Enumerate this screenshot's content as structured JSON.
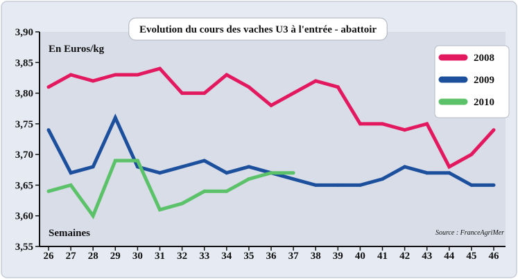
{
  "chart_data": {
    "type": "line",
    "title": "Evolution du cours des vaches U3 à l'entrée - abattoir",
    "unit_label": "En Euros/kg",
    "x_axis_label": "Semaines",
    "source": "Source : FranceAgriMer",
    "x": [
      26,
      27,
      28,
      29,
      30,
      31,
      32,
      33,
      34,
      35,
      36,
      37,
      38,
      39,
      40,
      41,
      42,
      43,
      44,
      45,
      46
    ],
    "ylim": [
      3.55,
      3.9
    ],
    "y_ticks": [
      "3,55",
      "3,60",
      "3,65",
      "3,70",
      "3,75",
      "3,80",
      "3,85",
      "3,90"
    ],
    "grid": false,
    "legend_position": "top-right",
    "series": [
      {
        "name": "2008",
        "color": "#e3195f",
        "values": [
          3.81,
          3.83,
          3.82,
          3.83,
          3.83,
          3.84,
          3.8,
          3.8,
          3.83,
          3.81,
          3.78,
          3.8,
          3.82,
          3.81,
          3.75,
          3.75,
          3.74,
          3.75,
          3.68,
          3.7,
          3.74
        ]
      },
      {
        "name": "2009",
        "color": "#1c4f9c",
        "values": [
          3.74,
          3.67,
          3.68,
          3.76,
          3.68,
          3.67,
          3.68,
          3.69,
          3.67,
          3.68,
          3.67,
          3.66,
          3.65,
          3.65,
          3.65,
          3.66,
          3.68,
          3.67,
          3.67,
          3.65,
          3.65
        ]
      },
      {
        "name": "2010",
        "color": "#5cc26a",
        "values": [
          3.64,
          3.65,
          3.6,
          3.69,
          3.69,
          3.61,
          3.62,
          3.64,
          3.64,
          3.66,
          3.67,
          3.67,
          null,
          null,
          null,
          null,
          null,
          null,
          null,
          null,
          null
        ]
      }
    ],
    "colors": {
      "plot_background": "#d8dde8",
      "frame_background": "#e6eaf2",
      "axis": "#111111"
    }
  }
}
